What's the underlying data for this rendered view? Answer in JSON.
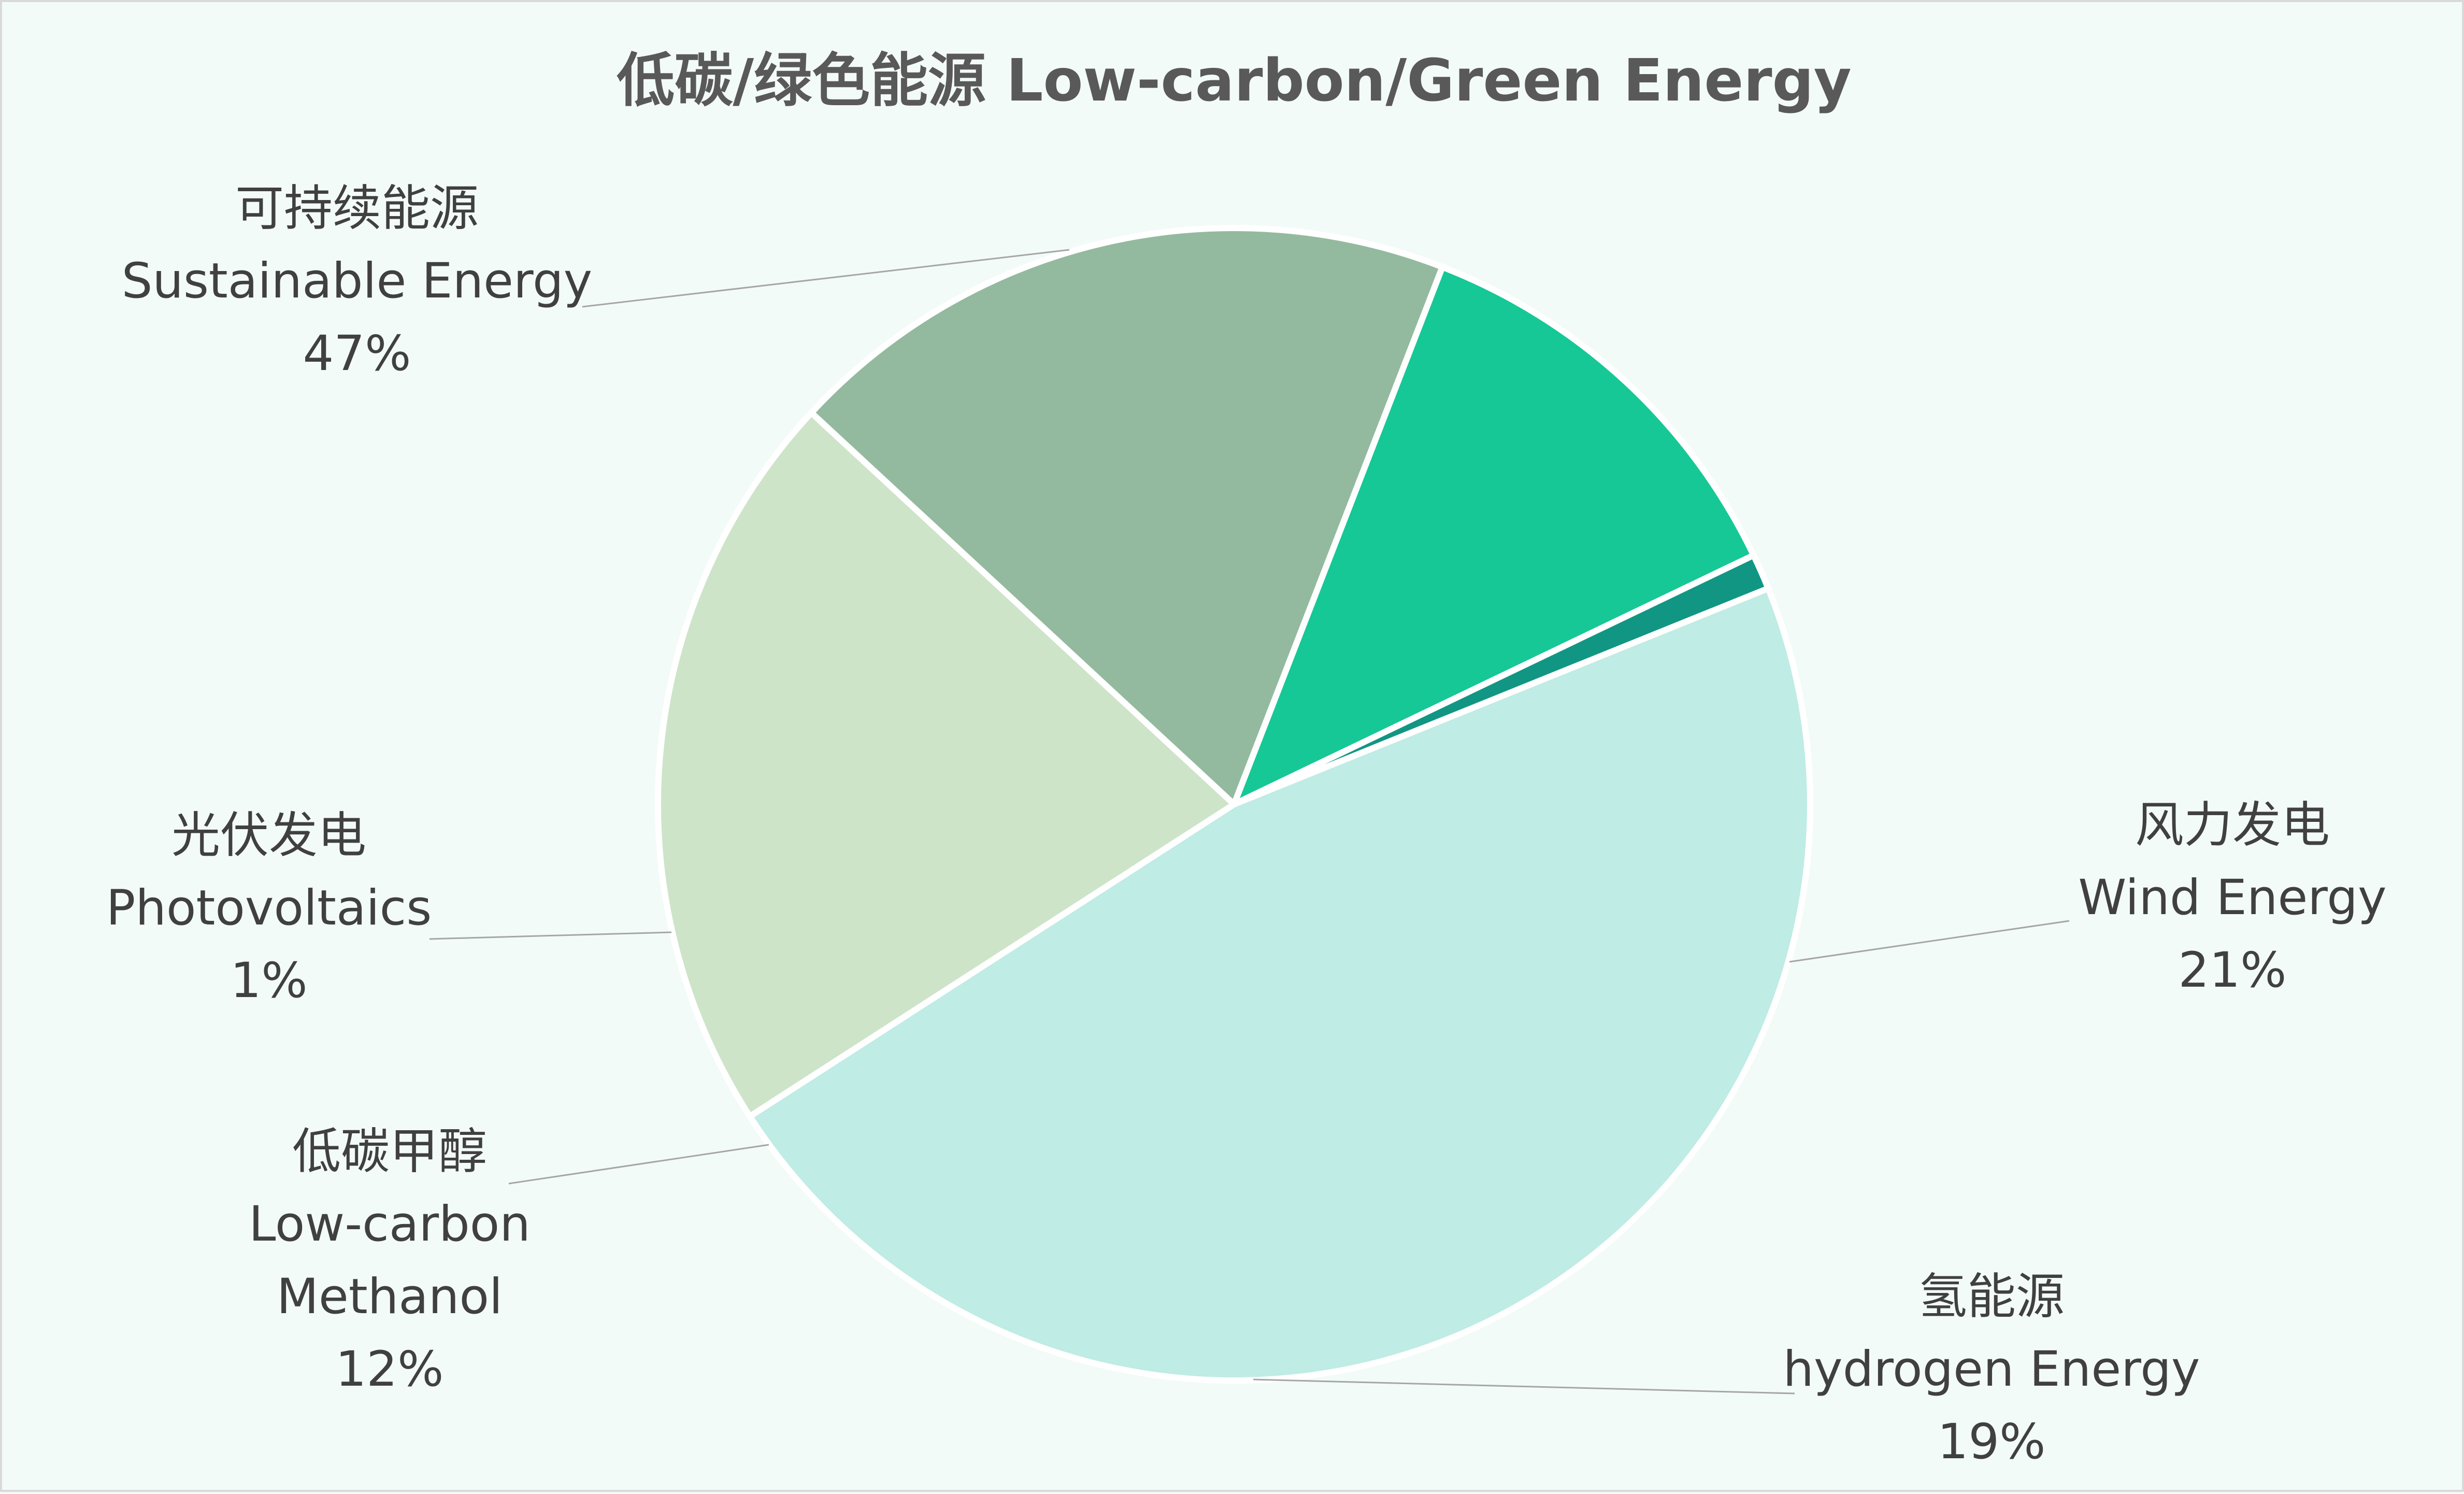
{
  "chart_data": {
    "type": "pie",
    "title": "低碳/绿色能源 Low-carbon/Green Energy",
    "slices": [
      {
        "label_zh": "可持续能源",
        "label_en": "Sustainable Energy",
        "value": 47,
        "percent_label": "47%",
        "color": "#BFECE4"
      },
      {
        "label_zh": "风力发电",
        "label_en": "Wind Energy",
        "value": 21,
        "percent_label": "21%",
        "color": "#CDE4C9"
      },
      {
        "label_zh": "氢能源",
        "label_en": "hydrogen  Energy",
        "value": 19,
        "percent_label": "19%",
        "color": "#93BA9E"
      },
      {
        "label_zh": "低碳甲醇",
        "label_en": "Low-carbon Methanol",
        "value": 12,
        "percent_label": "12%",
        "color": "#16C896"
      },
      {
        "label_zh": "光伏发电",
        "label_en": "Photovoltaics",
        "value": 1,
        "percent_label": "1%",
        "color": "#119684"
      }
    ],
    "legend": "none",
    "data_labels": "outside with leader lines"
  },
  "colors": {
    "background": "#F3FBF8",
    "title": "#595959",
    "label_text": "#404040",
    "leader_line": "#A6A6A6",
    "slice_border": "#FFFFFF"
  }
}
